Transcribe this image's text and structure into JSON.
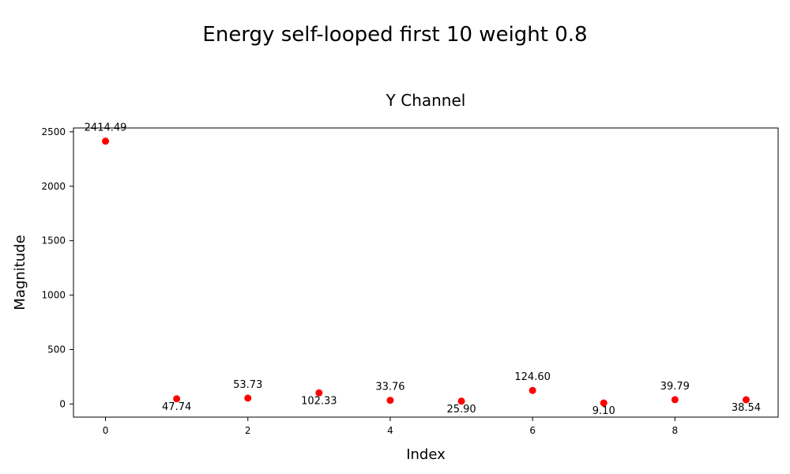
{
  "figure": {
    "suptitle": "Energy self-looped first 10 weight 0.8"
  },
  "chart_data": {
    "type": "scatter",
    "title": "Y Channel",
    "xlabel": "Index",
    "ylabel": "Magnitude",
    "xlim": [
      -0.45,
      9.45
    ],
    "ylim": [
      -120.7,
      2535.2
    ],
    "xticks": [
      0,
      2,
      4,
      6,
      8
    ],
    "yticks": [
      0,
      500,
      1000,
      1500,
      2000,
      2500
    ],
    "x": [
      0,
      1,
      2,
      3,
      4,
      5,
      6,
      7,
      8,
      9
    ],
    "y": [
      2414.49,
      47.74,
      53.73,
      102.33,
      33.76,
      25.9,
      124.6,
      9.1,
      39.79,
      38.54
    ],
    "labels": [
      "2414.49",
      "47.74",
      "53.73",
      "102.33",
      "33.76",
      "25.90",
      "124.60",
      "9.10",
      "39.79",
      "38.54"
    ],
    "label_positions": [
      "above",
      "below",
      "above",
      "below",
      "above",
      "below",
      "above",
      "below",
      "above",
      "below"
    ],
    "marker_color": "#ff0000",
    "grid": false,
    "legend": false
  }
}
